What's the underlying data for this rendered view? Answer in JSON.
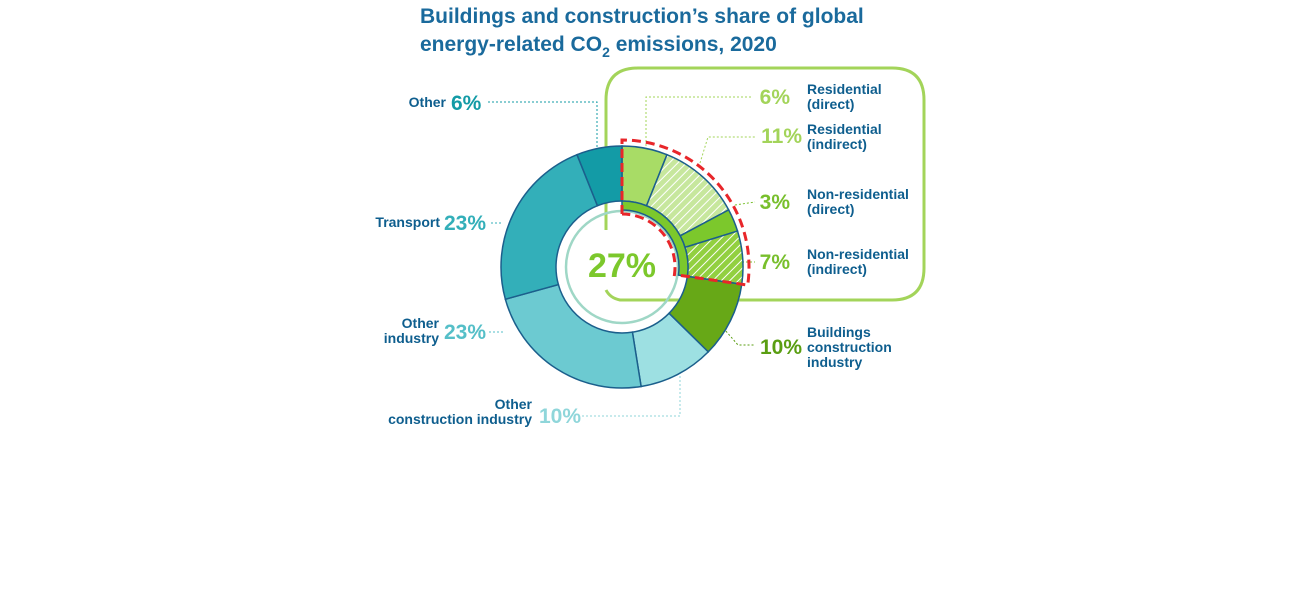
{
  "chart_data": {
    "type": "pie",
    "title": "Buildings and construction’s share of global",
    "title_line2_pre": "energy-related CO",
    "title_line2_sub": "2",
    "title_line2_post": " emissions, 2020",
    "unit": "%",
    "center_label": "27%",
    "colors": {
      "title": "#1a6a9c",
      "label": "#0e5e8e",
      "callout_box": "#a3d45a",
      "highlight_dash": "#e8262a"
    },
    "slices": [
      {
        "key": "res_direct",
        "value": 6,
        "pct_label": "6%",
        "label_lines": [
          "Residential",
          "(direct)"
        ],
        "color": "#a8dc66",
        "hatch": false,
        "pct_color": "#a3d45a"
      },
      {
        "key": "res_indirect",
        "value": 11,
        "pct_label": "11%",
        "label_lines": [
          "Residential",
          "(indirect)"
        ],
        "color": "#c7e79d",
        "hatch": true,
        "pct_color": "#a3d45a"
      },
      {
        "key": "nonres_direct",
        "value": 3,
        "pct_label": "3%",
        "label_lines": [
          "Non-residential",
          "(direct)"
        ],
        "color": "#7cc82c",
        "hatch": false,
        "pct_color": "#78bf2c"
      },
      {
        "key": "nonres_indirect",
        "value": 7,
        "pct_label": "7%",
        "label_lines": [
          "Non-residential",
          "(indirect)"
        ],
        "color": "#92d040",
        "hatch": true,
        "pct_color": "#78bf2c"
      },
      {
        "key": "bldg_construction",
        "value": 10,
        "pct_label": "10%",
        "label_lines": [
          "Buildings",
          "construction",
          "industry"
        ],
        "color": "#67a817",
        "hatch": false,
        "pct_color": "#5a9e12"
      },
      {
        "key": "other_construction",
        "value": 10,
        "pct_label": "10%",
        "label_lines": [
          "Other",
          "construction industry"
        ],
        "color": "#9de0e2",
        "hatch": false,
        "pct_color": "#8fd6da"
      },
      {
        "key": "other_industry",
        "value": 23,
        "pct_label": "23%",
        "label_lines": [
          "Other",
          "industry"
        ],
        "color": "#6ccad1",
        "hatch": false,
        "pct_color": "#55bfc8"
      },
      {
        "key": "transport",
        "value": 23,
        "pct_label": "23%",
        "label_lines": [
          "Transport"
        ],
        "color": "#33afb9",
        "hatch": false,
        "pct_color": "#33afb9"
      },
      {
        "key": "other",
        "value": 6,
        "pct_label": "6%",
        "label_lines": [
          "Other"
        ],
        "color": "#139ba6",
        "hatch": false,
        "pct_color": "#139ba6"
      }
    ]
  }
}
